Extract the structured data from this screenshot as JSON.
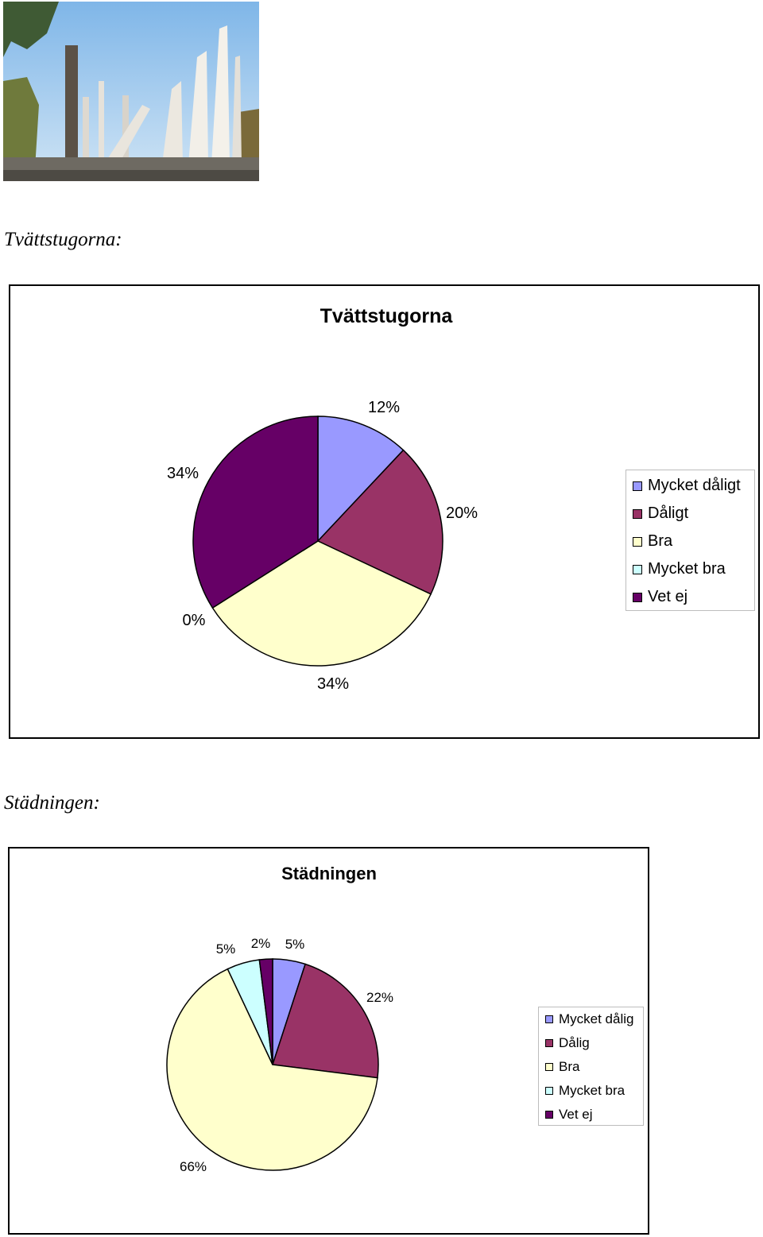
{
  "headings": {
    "tvattstugorna": "Tvättstugorna:",
    "stadningen": "Städningen:"
  },
  "colors": {
    "Mycket dåligt": "#9999ff",
    "Dåligt": "#993366",
    "Bra": "#ffffcc",
    "Mycket bra": "#ccffff",
    "Vet ej": "#660066"
  },
  "chart_data": [
    {
      "type": "pie",
      "title": "Tvättstugorna",
      "categories": [
        "Mycket dåligt",
        "Dåligt",
        "Bra",
        "Mycket bra",
        "Vet ej"
      ],
      "values": [
        12,
        20,
        34,
        0,
        34
      ],
      "labels": [
        "12%",
        "20%",
        "34%",
        "0%",
        "34%"
      ],
      "colors": [
        "#9999ff",
        "#993366",
        "#ffffcc",
        "#ccffff",
        "#660066"
      ],
      "legend_position": "right"
    },
    {
      "type": "pie",
      "title": "Städningen",
      "categories": [
        "Mycket dålig",
        "Dålig",
        "Bra",
        "Mycket bra",
        "Vet ej"
      ],
      "values": [
        5,
        22,
        66,
        5,
        2
      ],
      "labels": [
        "5%",
        "22%",
        "66%",
        "5%",
        "2%"
      ],
      "colors": [
        "#9999ff",
        "#993366",
        "#ffffcc",
        "#ccffff",
        "#660066"
      ],
      "legend_position": "right"
    }
  ]
}
